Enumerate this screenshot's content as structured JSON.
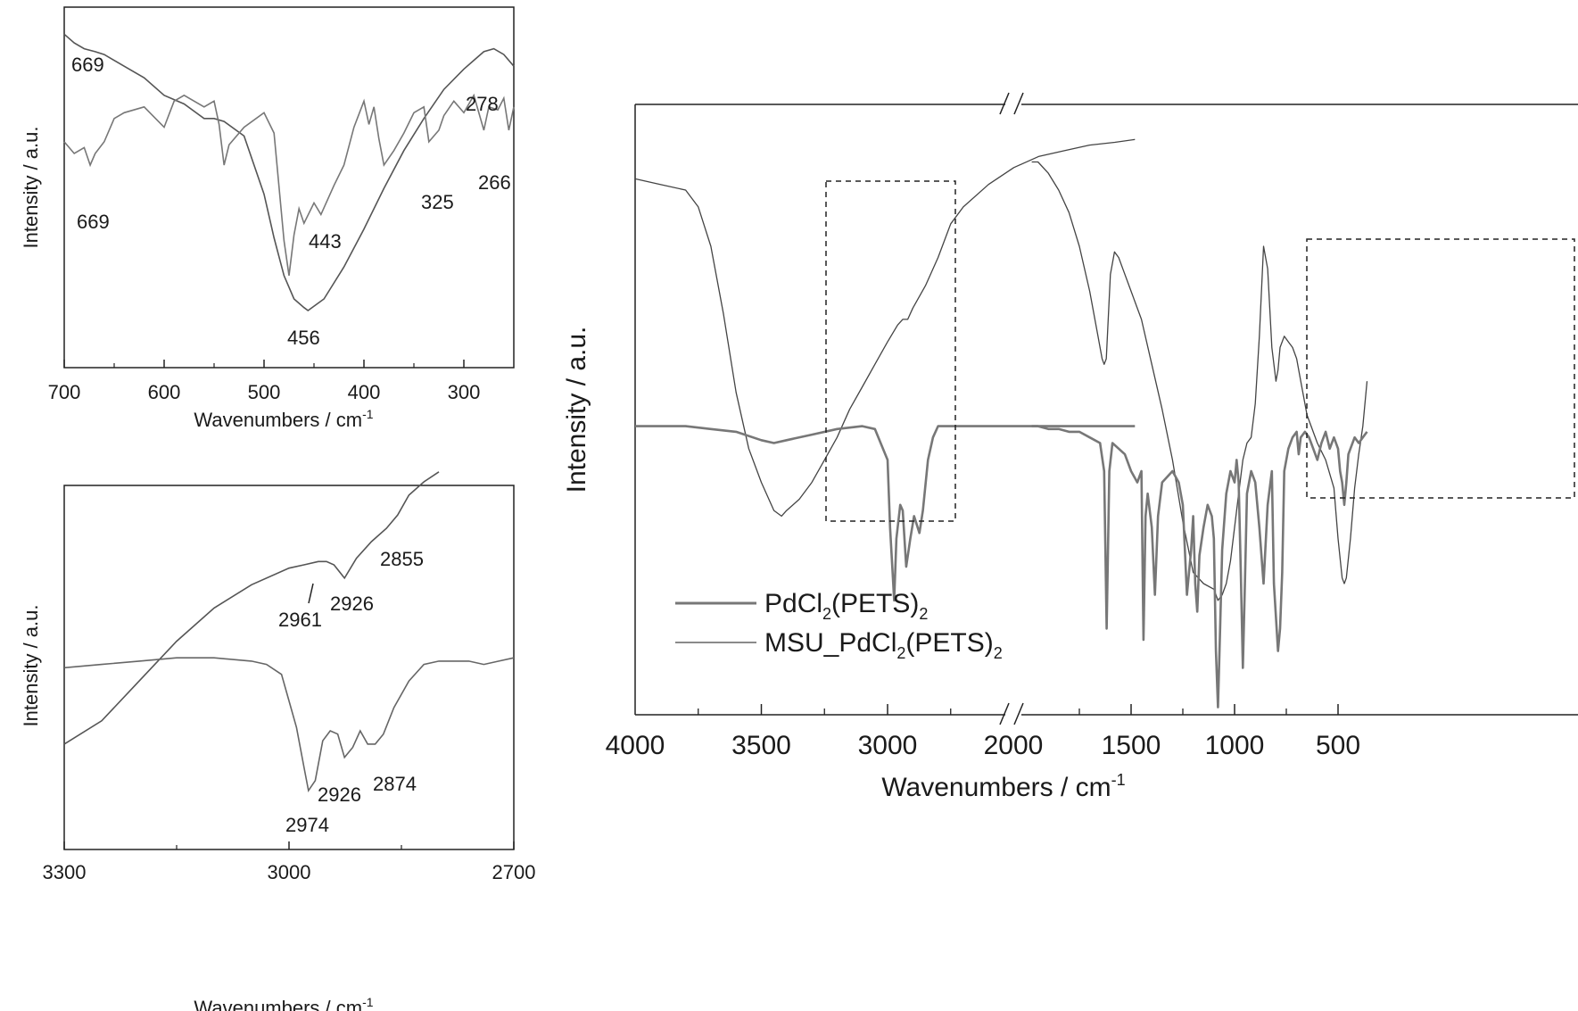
{
  "chart_data": [
    {
      "id": "far-ir",
      "type": "line",
      "xlabel": "Wavenumbers / cm",
      "xlabel_sup": "-1",
      "ylabel": "Intensity / a.u.",
      "xlim": [
        700,
        250
      ],
      "xticks": [
        700,
        600,
        500,
        400,
        300
      ],
      "ylim": [
        0,
        100
      ],
      "series": [
        {
          "color": "#555555",
          "x": [
            700,
            690,
            680,
            669,
            660,
            640,
            620,
            600,
            580,
            560,
            550,
            540,
            520,
            500,
            490,
            480,
            470,
            460,
            456,
            440,
            420,
            400,
            380,
            360,
            340,
            320,
            300,
            290,
            280,
            270,
            260,
            250
          ],
          "y": [
            95,
            92,
            90,
            89,
            88,
            84,
            80,
            74,
            71,
            66,
            66,
            65,
            60,
            40,
            25,
            12,
            4,
            1,
            0,
            4,
            15,
            28,
            42,
            55,
            66,
            76,
            83,
            86,
            89,
            90,
            88,
            84
          ]
        },
        {
          "color": "#777777",
          "x": [
            700,
            690,
            680,
            674,
            669,
            660,
            650,
            640,
            620,
            600,
            590,
            580,
            560,
            550,
            545,
            540,
            535,
            520,
            500,
            490,
            480,
            475,
            470,
            465,
            460,
            450,
            443,
            430,
            420,
            410,
            400,
            395,
            390,
            385,
            380,
            370,
            360,
            350,
            340,
            335,
            325,
            320,
            310,
            300,
            290,
            280,
            275,
            266,
            260,
            255,
            250
          ],
          "y": [
            58,
            54,
            56,
            50,
            54,
            58,
            66,
            68,
            70,
            63,
            72,
            74,
            70,
            72,
            64,
            50,
            57,
            63,
            68,
            61,
            24,
            12,
            26,
            35,
            30,
            37,
            33,
            43,
            50,
            63,
            72,
            64,
            70,
            59,
            50,
            55,
            61,
            68,
            70,
            58,
            62,
            67,
            72,
            68,
            74,
            62,
            70,
            69,
            73,
            62,
            70
          ]
        }
      ],
      "annotations": [
        "669",
        "278",
        "669",
        "443",
        "325",
        "266",
        "456"
      ]
    },
    {
      "id": "ch-stretch",
      "type": "line",
      "xlabel": "Wavenumbers / cm",
      "xlabel_sup": "-1",
      "ylabel": "Intensity / a.u.",
      "xlim": [
        3300,
        2700
      ],
      "xticks": [
        3300,
        3000,
        2700
      ],
      "ylim": [
        0,
        100
      ],
      "series": [
        {
          "color": "#555555",
          "x": [
            3300,
            3250,
            3200,
            3150,
            3100,
            3050,
            3000,
            2980,
            2961,
            2950,
            2940,
            2926,
            2910,
            2890,
            2870,
            2855,
            2840,
            2820,
            2800
          ],
          "y": [
            21,
            28,
            40,
            52,
            62,
            69,
            74,
            75,
            76,
            76,
            75,
            71,
            77,
            82,
            86,
            90,
            96,
            100,
            103
          ]
        },
        {
          "color": "#666666",
          "x": [
            3300,
            3250,
            3200,
            3150,
            3100,
            3050,
            3030,
            3010,
            3000,
            2990,
            2980,
            2974,
            2965,
            2955,
            2945,
            2935,
            2926,
            2915,
            2905,
            2895,
            2885,
            2874,
            2860,
            2840,
            2820,
            2800,
            2780,
            2760,
            2740,
            2720,
            2700
          ],
          "y": [
            44,
            45,
            46,
            47,
            47,
            46,
            45,
            42,
            34,
            26,
            14,
            7,
            10,
            22,
            25,
            24,
            17,
            20,
            25,
            21,
            21,
            24,
            32,
            40,
            45,
            46,
            46,
            46,
            45,
            46,
            47
          ]
        }
      ],
      "annotations": [
        "2855",
        "2961",
        "2926",
        "2926",
        "2874",
        "2974"
      ]
    },
    {
      "id": "full-ir",
      "type": "line",
      "xlabel": "Wavenumbers / cm",
      "xlabel_sup": "-1",
      "ylabel": "Intensity / a.u.",
      "axis_break": [
        2000,
        2000
      ],
      "xticks": [
        4000,
        3500,
        3000,
        2000,
        1500,
        1000,
        500
      ],
      "ylim": [
        0,
        100
      ],
      "legend": [
        {
          "name_parts": [
            [
              "PdCl",
              ""
            ],
            [
              "2",
              "sub"
            ],
            [
              "(PETS)",
              ""
            ],
            [
              "2",
              "sub"
            ]
          ],
          "color": "#777777",
          "stroke": 3
        },
        {
          "name_parts": [
            [
              "MSU_PdCl",
              ""
            ],
            [
              "2",
              "sub"
            ],
            [
              "(PETS)",
              ""
            ],
            [
              "2",
              "sub"
            ]
          ],
          "color": "#444444",
          "stroke": 1.2
        }
      ],
      "series": [
        {
          "color": "#444444",
          "segment": "left",
          "x": [
            4000,
            3900,
            3800,
            3750,
            3700,
            3650,
            3600,
            3550,
            3500,
            3450,
            3420,
            3400,
            3350,
            3300,
            3250,
            3200,
            3150,
            3100,
            3050,
            3000,
            2960,
            2940,
            2920,
            2900,
            2850,
            2800,
            2750,
            2700,
            2600,
            2500,
            2400,
            2300,
            2200,
            2100,
            2020
          ],
          "y": [
            92,
            91,
            90,
            87,
            80,
            68,
            54,
            44,
            38,
            33,
            32,
            33,
            35,
            38,
            42,
            46,
            51,
            55,
            59,
            63,
            66,
            67,
            67,
            69,
            73,
            78,
            84,
            87,
            91,
            94,
            96,
            97,
            98,
            98.5,
            99
          ]
        },
        {
          "color": "#444444",
          "segment": "right",
          "x": [
            1980,
            1950,
            1900,
            1850,
            1800,
            1750,
            1700,
            1660,
            1640,
            1630,
            1620,
            1600,
            1580,
            1560,
            1540,
            1500,
            1450,
            1400,
            1350,
            1300,
            1250,
            1200,
            1150,
            1100,
            1080,
            1060,
            1040,
            1020,
            1000,
            980,
            960,
            940,
            920,
            900,
            880,
            860,
            840,
            820,
            800,
            790,
            780,
            760,
            740,
            720,
            700,
            680,
            650,
            600,
            560,
            520,
            500,
            480,
            470,
            460,
            440,
            420,
            400,
            380,
            360
          ],
          "y": [
            95,
            95,
            93,
            90,
            86,
            80,
            72,
            64,
            60,
            59,
            60,
            75,
            79,
            78,
            76,
            72,
            67,
            59,
            51,
            42,
            31,
            22,
            20,
            19,
            17,
            18,
            20,
            24,
            30,
            36,
            42,
            45,
            46,
            52,
            64,
            80,
            76,
            62,
            56,
            58,
            62,
            64,
            63,
            62,
            60,
            56,
            50,
            45,
            42,
            37,
            28,
            21,
            20,
            21,
            28,
            37,
            43,
            48,
            56
          ]
        },
        {
          "color": "#777777",
          "segment": "left",
          "x": [
            4000,
            3900,
            3800,
            3700,
            3600,
            3500,
            3450,
            3400,
            3300,
            3200,
            3100,
            3050,
            3000,
            2990,
            2974,
            2965,
            2950,
            2940,
            2926,
            2910,
            2895,
            2874,
            2860,
            2840,
            2820,
            2800,
            2750,
            2700,
            2600,
            2500,
            2400,
            2300,
            2200,
            2100,
            2020
          ],
          "y": [
            48,
            48,
            48,
            47.5,
            47,
            45.5,
            45,
            45.5,
            46.5,
            47.5,
            48,
            47.5,
            42,
            30,
            17,
            28,
            34,
            33,
            23,
            28,
            32,
            29,
            33,
            42,
            46,
            48,
            48,
            48,
            48,
            48,
            48,
            48,
            48,
            48,
            48
          ]
        },
        {
          "color": "#777777",
          "segment": "right",
          "x": [
            1980,
            1950,
            1900,
            1850,
            1800,
            1750,
            1700,
            1650,
            1630,
            1618,
            1605,
            1590,
            1560,
            1530,
            1500,
            1470,
            1450,
            1440,
            1430,
            1420,
            1400,
            1385,
            1370,
            1350,
            1300,
            1270,
            1250,
            1230,
            1210,
            1200,
            1190,
            1180,
            1170,
            1150,
            1130,
            1110,
            1100,
            1090,
            1080,
            1070,
            1060,
            1040,
            1020,
            1000,
            990,
            980,
            970,
            960,
            950,
            940,
            920,
            900,
            880,
            860,
            840,
            820,
            810,
            800,
            790,
            780,
            770,
            760,
            740,
            720,
            700,
            690,
            680,
            660,
            640,
            620,
            600,
            580,
            560,
            540,
            520,
            500,
            490,
            480,
            470,
            460,
            450,
            440,
            420,
            400,
            380,
            360
          ],
          "y": [
            48,
            48,
            47.5,
            47.5,
            47,
            47,
            46,
            45,
            40,
            12,
            40,
            45,
            44,
            43,
            40,
            38,
            40,
            10,
            32,
            36,
            30,
            18,
            32,
            38,
            40,
            38,
            34,
            18,
            26,
            32,
            20,
            15,
            25,
            30,
            34,
            32,
            28,
            8,
            -2,
            12,
            26,
            36,
            40,
            38,
            42,
            38,
            22,
            5,
            20,
            36,
            40,
            38,
            30,
            20,
            34,
            40,
            20,
            14,
            8,
            12,
            22,
            40,
            44,
            46,
            47,
            43,
            46,
            47,
            46,
            44,
            42,
            45,
            47,
            44,
            46,
            44,
            40,
            38,
            34,
            38,
            43,
            44,
            46,
            45,
            46,
            47
          ]
        }
      ],
      "annotations": [
        "//",
        "//"
      ]
    }
  ],
  "annotation_text": {
    "far_669_top": "669",
    "far_278": "278",
    "far_669_bottom": "669",
    "far_443": "443",
    "far_325": "325",
    "far_266": "266",
    "far_456": "456",
    "ch_2855": "2855",
    "ch_2961": "2961",
    "ch_2926_top": "2926",
    "ch_2926_bottom": "2926",
    "ch_2874": "2874",
    "ch_2974": "2974",
    "break_mark": "//"
  }
}
